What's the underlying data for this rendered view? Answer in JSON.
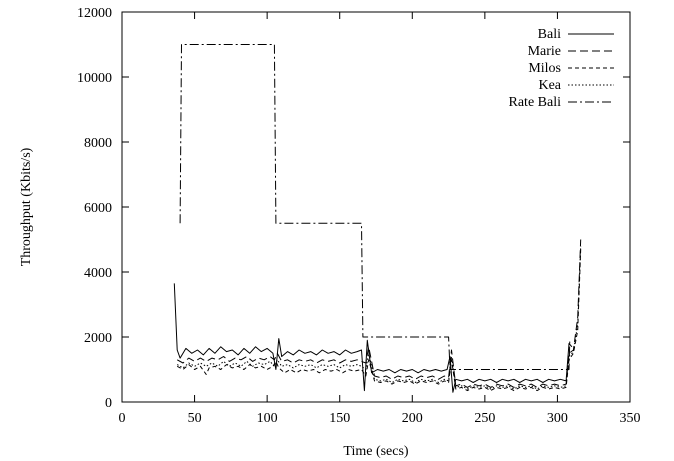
{
  "chart_data": {
    "type": "line",
    "title": "",
    "xlabel": "Time (secs)",
    "ylabel": "Throughput (Kbits/s)",
    "xlim": [
      0,
      350
    ],
    "ylim": [
      0,
      12000
    ],
    "xticks": [
      0,
      50,
      100,
      150,
      200,
      250,
      300,
      350
    ],
    "yticks": [
      0,
      2000,
      4000,
      6000,
      8000,
      10000,
      12000
    ],
    "grid": false,
    "legend_position": "top-right",
    "series": [
      {
        "name": "Bali",
        "style": "solid",
        "points": [
          [
            36,
            3650
          ],
          [
            38,
            1600
          ],
          [
            40,
            1350
          ],
          [
            44,
            1650
          ],
          [
            48,
            1500
          ],
          [
            52,
            1600
          ],
          [
            56,
            1450
          ],
          [
            60,
            1650
          ],
          [
            64,
            1500
          ],
          [
            68,
            1700
          ],
          [
            72,
            1550
          ],
          [
            76,
            1600
          ],
          [
            80,
            1450
          ],
          [
            84,
            1650
          ],
          [
            88,
            1500
          ],
          [
            92,
            1700
          ],
          [
            96,
            1550
          ],
          [
            100,
            1650
          ],
          [
            104,
            1500
          ],
          [
            106,
            1000
          ],
          [
            108,
            1950
          ],
          [
            110,
            1400
          ],
          [
            114,
            1550
          ],
          [
            118,
            1450
          ],
          [
            122,
            1600
          ],
          [
            126,
            1500
          ],
          [
            130,
            1550
          ],
          [
            134,
            1450
          ],
          [
            138,
            1600
          ],
          [
            142,
            1500
          ],
          [
            146,
            1550
          ],
          [
            150,
            1450
          ],
          [
            154,
            1600
          ],
          [
            158,
            1500
          ],
          [
            162,
            1550
          ],
          [
            165,
            1600
          ],
          [
            167,
            350
          ],
          [
            169,
            1900
          ],
          [
            172,
            900
          ],
          [
            176,
            1000
          ],
          [
            180,
            950
          ],
          [
            184,
            1000
          ],
          [
            188,
            900
          ],
          [
            192,
            1000
          ],
          [
            196,
            950
          ],
          [
            200,
            1000
          ],
          [
            204,
            900
          ],
          [
            208,
            1000
          ],
          [
            212,
            950
          ],
          [
            216,
            1000
          ],
          [
            220,
            950
          ],
          [
            224,
            1000
          ],
          [
            226,
            1400
          ],
          [
            228,
            300
          ],
          [
            230,
            700
          ],
          [
            234,
            650
          ],
          [
            238,
            700
          ],
          [
            242,
            600
          ],
          [
            246,
            700
          ],
          [
            250,
            650
          ],
          [
            254,
            700
          ],
          [
            258,
            600
          ],
          [
            262,
            700
          ],
          [
            266,
            650
          ],
          [
            270,
            700
          ],
          [
            274,
            600
          ],
          [
            278,
            700
          ],
          [
            282,
            650
          ],
          [
            286,
            700
          ],
          [
            290,
            600
          ],
          [
            294,
            700
          ],
          [
            298,
            650
          ],
          [
            302,
            700
          ],
          [
            306,
            650
          ],
          [
            308,
            1800
          ],
          [
            310,
            1700
          ]
        ]
      },
      {
        "name": "Marie",
        "style": "dashed",
        "points": [
          [
            38,
            1300
          ],
          [
            42,
            1200
          ],
          [
            46,
            1350
          ],
          [
            50,
            1250
          ],
          [
            54,
            1350
          ],
          [
            58,
            1250
          ],
          [
            62,
            1350
          ],
          [
            66,
            1300
          ],
          [
            70,
            1400
          ],
          [
            74,
            1250
          ],
          [
            78,
            1350
          ],
          [
            82,
            1300
          ],
          [
            86,
            1400
          ],
          [
            90,
            1250
          ],
          [
            94,
            1350
          ],
          [
            98,
            1300
          ],
          [
            102,
            1400
          ],
          [
            105,
            1300
          ],
          [
            107,
            1500
          ],
          [
            110,
            1250
          ],
          [
            114,
            1300
          ],
          [
            118,
            1200
          ],
          [
            122,
            1300
          ],
          [
            126,
            1250
          ],
          [
            130,
            1300
          ],
          [
            134,
            1200
          ],
          [
            138,
            1300
          ],
          [
            142,
            1250
          ],
          [
            146,
            1300
          ],
          [
            150,
            1200
          ],
          [
            154,
            1300
          ],
          [
            158,
            1250
          ],
          [
            162,
            1300
          ],
          [
            165,
            1250
          ],
          [
            168,
            1200
          ],
          [
            170,
            1700
          ],
          [
            174,
            800
          ],
          [
            178,
            750
          ],
          [
            182,
            800
          ],
          [
            186,
            700
          ],
          [
            190,
            800
          ],
          [
            194,
            750
          ],
          [
            198,
            800
          ],
          [
            202,
            700
          ],
          [
            206,
            800
          ],
          [
            210,
            750
          ],
          [
            214,
            800
          ],
          [
            218,
            700
          ],
          [
            222,
            800
          ],
          [
            225,
            750
          ],
          [
            227,
            1600
          ],
          [
            230,
            500
          ],
          [
            234,
            550
          ],
          [
            238,
            450
          ],
          [
            242,
            550
          ],
          [
            246,
            500
          ],
          [
            250,
            550
          ],
          [
            254,
            450
          ],
          [
            258,
            550
          ],
          [
            262,
            500
          ],
          [
            266,
            550
          ],
          [
            270,
            450
          ],
          [
            274,
            550
          ],
          [
            278,
            500
          ],
          [
            282,
            550
          ],
          [
            286,
            450
          ],
          [
            290,
            550
          ],
          [
            294,
            500
          ],
          [
            298,
            550
          ],
          [
            302,
            500
          ],
          [
            306,
            550
          ],
          [
            308,
            1500
          ],
          [
            311,
            1600
          ],
          [
            314,
            2600
          ],
          [
            316,
            5000
          ]
        ]
      },
      {
        "name": "Milos",
        "style": "short-dashed",
        "points": [
          [
            38,
            1100
          ],
          [
            42,
            1000
          ],
          [
            46,
            1150
          ],
          [
            50,
            1000
          ],
          [
            54,
            1100
          ],
          [
            58,
            850
          ],
          [
            60,
            1050
          ],
          [
            64,
            1100
          ],
          [
            68,
            1000
          ],
          [
            72,
            1150
          ],
          [
            76,
            1050
          ],
          [
            80,
            1100
          ],
          [
            84,
            1000
          ],
          [
            88,
            1150
          ],
          [
            92,
            1050
          ],
          [
            96,
            1100
          ],
          [
            100,
            1000
          ],
          [
            104,
            1100
          ],
          [
            106,
            1250
          ],
          [
            108,
            1050
          ],
          [
            112,
            900
          ],
          [
            116,
            1000
          ],
          [
            120,
            900
          ],
          [
            124,
            1000
          ],
          [
            128,
            950
          ],
          [
            132,
            1000
          ],
          [
            136,
            900
          ],
          [
            140,
            1000
          ],
          [
            144,
            950
          ],
          [
            148,
            1000
          ],
          [
            152,
            900
          ],
          [
            156,
            1000
          ],
          [
            160,
            950
          ],
          [
            165,
            1000
          ],
          [
            168,
            800
          ],
          [
            170,
            1300
          ],
          [
            174,
            650
          ],
          [
            178,
            600
          ],
          [
            182,
            650
          ],
          [
            186,
            550
          ],
          [
            190,
            650
          ],
          [
            194,
            600
          ],
          [
            198,
            650
          ],
          [
            202,
            550
          ],
          [
            206,
            650
          ],
          [
            210,
            600
          ],
          [
            214,
            650
          ],
          [
            218,
            550
          ],
          [
            222,
            650
          ],
          [
            225,
            600
          ],
          [
            227,
            1300
          ],
          [
            230,
            400
          ],
          [
            234,
            450
          ],
          [
            238,
            350
          ],
          [
            242,
            450
          ],
          [
            246,
            400
          ],
          [
            250,
            450
          ],
          [
            254,
            350
          ],
          [
            258,
            450
          ],
          [
            262,
            400
          ],
          [
            266,
            450
          ],
          [
            270,
            350
          ],
          [
            274,
            450
          ],
          [
            278,
            400
          ],
          [
            282,
            450
          ],
          [
            286,
            350
          ],
          [
            290,
            450
          ],
          [
            294,
            400
          ],
          [
            298,
            450
          ],
          [
            302,
            400
          ],
          [
            306,
            450
          ],
          [
            308,
            1300
          ],
          [
            311,
            1500
          ],
          [
            314,
            2200
          ],
          [
            316,
            4700
          ]
        ]
      },
      {
        "name": "Kea",
        "style": "dotted",
        "points": [
          [
            38,
            1150
          ],
          [
            42,
            1050
          ],
          [
            46,
            1200
          ],
          [
            50,
            1100
          ],
          [
            54,
            1200
          ],
          [
            58,
            1100
          ],
          [
            62,
            1200
          ],
          [
            66,
            1100
          ],
          [
            70,
            1250
          ],
          [
            74,
            1100
          ],
          [
            78,
            1200
          ],
          [
            82,
            1100
          ],
          [
            86,
            1250
          ],
          [
            90,
            1100
          ],
          [
            94,
            1200
          ],
          [
            98,
            1150
          ],
          [
            102,
            1250
          ],
          [
            105,
            1100
          ],
          [
            107,
            1300
          ],
          [
            110,
            1100
          ],
          [
            114,
            1150
          ],
          [
            118,
            1050
          ],
          [
            122,
            1150
          ],
          [
            126,
            1100
          ],
          [
            130,
            1150
          ],
          [
            134,
            1050
          ],
          [
            138,
            1150
          ],
          [
            142,
            1100
          ],
          [
            146,
            1150
          ],
          [
            150,
            1050
          ],
          [
            154,
            1150
          ],
          [
            158,
            1100
          ],
          [
            162,
            1150
          ],
          [
            165,
            1100
          ],
          [
            168,
            1000
          ],
          [
            170,
            1500
          ],
          [
            174,
            700
          ],
          [
            178,
            650
          ],
          [
            182,
            700
          ],
          [
            186,
            600
          ],
          [
            190,
            700
          ],
          [
            194,
            650
          ],
          [
            198,
            700
          ],
          [
            202,
            600
          ],
          [
            206,
            700
          ],
          [
            210,
            650
          ],
          [
            214,
            700
          ],
          [
            218,
            600
          ],
          [
            222,
            700
          ],
          [
            225,
            650
          ],
          [
            227,
            1400
          ],
          [
            230,
            450
          ],
          [
            234,
            500
          ],
          [
            238,
            400
          ],
          [
            242,
            500
          ],
          [
            246,
            450
          ],
          [
            250,
            500
          ],
          [
            254,
            400
          ],
          [
            258,
            500
          ],
          [
            262,
            450
          ],
          [
            266,
            500
          ],
          [
            270,
            400
          ],
          [
            274,
            500
          ],
          [
            278,
            450
          ],
          [
            282,
            500
          ],
          [
            286,
            400
          ],
          [
            290,
            500
          ],
          [
            294,
            450
          ],
          [
            298,
            500
          ],
          [
            302,
            450
          ],
          [
            306,
            500
          ],
          [
            308,
            1400
          ],
          [
            311,
            1550
          ],
          [
            314,
            2400
          ],
          [
            316,
            4800
          ]
        ]
      },
      {
        "name": "Rate Bali",
        "style": "dash-dot",
        "points": [
          [
            40,
            5500
          ],
          [
            41,
            11000
          ],
          [
            105,
            11000
          ],
          [
            106,
            5500
          ],
          [
            165,
            5500
          ],
          [
            166,
            2000
          ],
          [
            225,
            2000
          ],
          [
            226,
            1000
          ],
          [
            308,
            1000
          ],
          [
            308.5,
            1900
          ]
        ]
      }
    ]
  }
}
